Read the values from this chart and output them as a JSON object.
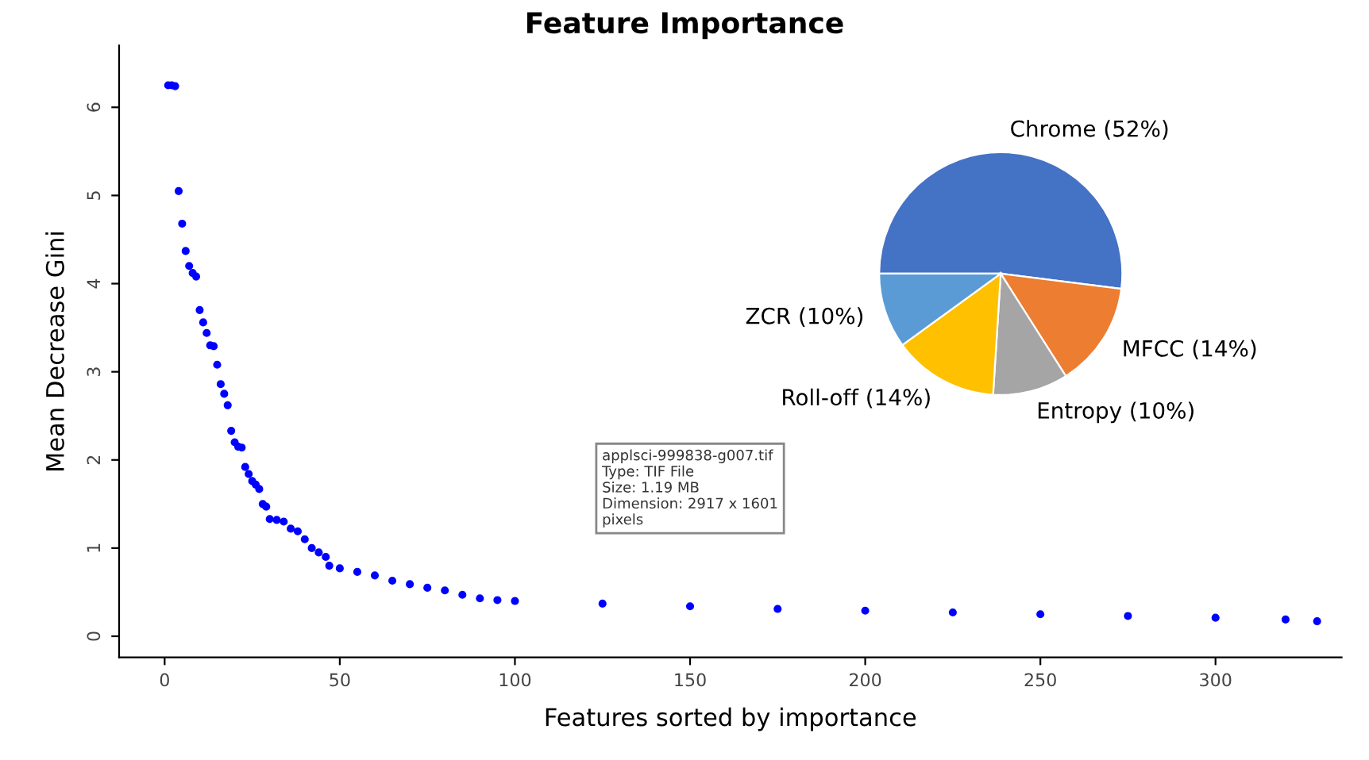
{
  "chart_data": [
    {
      "type": "scatter",
      "title": "Feature Importance",
      "xlabel": "Features sorted by importance",
      "ylabel": "Mean Decrease Gini",
      "x": [
        1,
        2,
        3,
        4,
        5,
        6,
        7,
        8,
        9,
        10,
        11,
        12,
        13,
        14,
        15,
        16,
        17,
        18,
        19,
        20,
        21,
        22,
        23,
        24,
        25,
        26,
        27,
        28,
        29,
        30,
        32,
        34,
        36,
        38,
        40,
        42,
        44,
        46,
        47,
        50,
        55,
        60,
        65,
        70,
        75,
        80,
        85,
        90,
        95,
        100,
        125,
        150,
        175,
        200,
        225,
        250,
        275,
        300,
        320,
        329
      ],
      "values": [
        6.25,
        6.25,
        6.24,
        5.05,
        4.68,
        4.37,
        4.2,
        4.12,
        4.08,
        3.7,
        3.56,
        3.44,
        3.3,
        3.29,
        3.08,
        2.86,
        2.75,
        2.62,
        2.33,
        2.2,
        2.15,
        2.14,
        1.92,
        1.84,
        1.76,
        1.72,
        1.67,
        1.5,
        1.47,
        1.33,
        1.32,
        1.3,
        1.22,
        1.19,
        1.1,
        1.0,
        0.95,
        0.9,
        0.8,
        0.77,
        0.73,
        0.69,
        0.63,
        0.59,
        0.55,
        0.52,
        0.47,
        0.43,
        0.41,
        0.4,
        0.37,
        0.34,
        0.31,
        0.29,
        0.27,
        0.25,
        0.23,
        0.21,
        0.19,
        0.17
      ],
      "color": "#0000ff",
      "marker": "circle",
      "grid": false,
      "xlim": [
        -13,
        336
      ],
      "xticks": [
        0,
        50,
        100,
        150,
        200,
        250,
        300
      ],
      "ylim": [
        -0.24,
        6.7
      ],
      "yticks": [
        0,
        1,
        2,
        3,
        4,
        5,
        6
      ],
      "annotations": [
        "applsci-999838-g007.tif\nType: TIF File\nSize: 1.19 MB\nDimension: 2917 x 1601\npixels"
      ]
    },
    {
      "type": "pie",
      "categories": [
        "Chrome (52%)",
        "MFCC (14%)",
        "Entropy (10%)",
        "Roll-off (14%)",
        "ZCR (10%)"
      ],
      "values": [
        52,
        14,
        10,
        14,
        10
      ],
      "colors": [
        "#4472c4",
        "#ed7d31",
        "#a5a5a5",
        "#ffc000",
        "#5b9bd5"
      ]
    }
  ]
}
